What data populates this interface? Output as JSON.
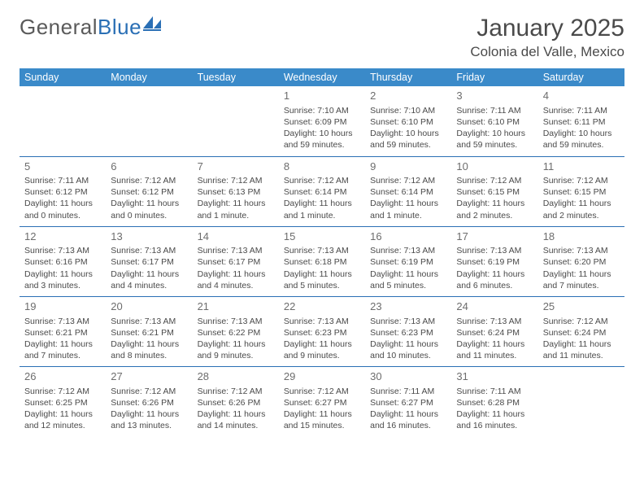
{
  "logo": {
    "text_gray": "General",
    "text_blue": "Blue",
    "icon_color": "#2a6fb5"
  },
  "header": {
    "title": "January 2025",
    "location": "Colonia del Valle, Mexico"
  },
  "colors": {
    "header_bar": "#3a8ac9",
    "row_divider": "#2a6fb5",
    "text_body": "#4a4a4a",
    "daynum": "#6d6d6d",
    "background": "#ffffff"
  },
  "typography": {
    "title_fontsize": 30,
    "location_fontsize": 17,
    "dayheader_fontsize": 12.5,
    "cell_fontsize": 10.5,
    "daynum_fontsize": 13
  },
  "day_headers": [
    "Sunday",
    "Monday",
    "Tuesday",
    "Wednesday",
    "Thursday",
    "Friday",
    "Saturday"
  ],
  "weeks": [
    [
      null,
      null,
      null,
      {
        "n": "1",
        "sunrise": "7:10 AM",
        "sunset": "6:09 PM",
        "daylight": "10 hours and 59 minutes."
      },
      {
        "n": "2",
        "sunrise": "7:10 AM",
        "sunset": "6:10 PM",
        "daylight": "10 hours and 59 minutes."
      },
      {
        "n": "3",
        "sunrise": "7:11 AM",
        "sunset": "6:10 PM",
        "daylight": "10 hours and 59 minutes."
      },
      {
        "n": "4",
        "sunrise": "7:11 AM",
        "sunset": "6:11 PM",
        "daylight": "10 hours and 59 minutes."
      }
    ],
    [
      {
        "n": "5",
        "sunrise": "7:11 AM",
        "sunset": "6:12 PM",
        "daylight": "11 hours and 0 minutes."
      },
      {
        "n": "6",
        "sunrise": "7:12 AM",
        "sunset": "6:12 PM",
        "daylight": "11 hours and 0 minutes."
      },
      {
        "n": "7",
        "sunrise": "7:12 AM",
        "sunset": "6:13 PM",
        "daylight": "11 hours and 1 minute."
      },
      {
        "n": "8",
        "sunrise": "7:12 AM",
        "sunset": "6:14 PM",
        "daylight": "11 hours and 1 minute."
      },
      {
        "n": "9",
        "sunrise": "7:12 AM",
        "sunset": "6:14 PM",
        "daylight": "11 hours and 1 minute."
      },
      {
        "n": "10",
        "sunrise": "7:12 AM",
        "sunset": "6:15 PM",
        "daylight": "11 hours and 2 minutes."
      },
      {
        "n": "11",
        "sunrise": "7:12 AM",
        "sunset": "6:15 PM",
        "daylight": "11 hours and 2 minutes."
      }
    ],
    [
      {
        "n": "12",
        "sunrise": "7:13 AM",
        "sunset": "6:16 PM",
        "daylight": "11 hours and 3 minutes."
      },
      {
        "n": "13",
        "sunrise": "7:13 AM",
        "sunset": "6:17 PM",
        "daylight": "11 hours and 4 minutes."
      },
      {
        "n": "14",
        "sunrise": "7:13 AM",
        "sunset": "6:17 PM",
        "daylight": "11 hours and 4 minutes."
      },
      {
        "n": "15",
        "sunrise": "7:13 AM",
        "sunset": "6:18 PM",
        "daylight": "11 hours and 5 minutes."
      },
      {
        "n": "16",
        "sunrise": "7:13 AM",
        "sunset": "6:19 PM",
        "daylight": "11 hours and 5 minutes."
      },
      {
        "n": "17",
        "sunrise": "7:13 AM",
        "sunset": "6:19 PM",
        "daylight": "11 hours and 6 minutes."
      },
      {
        "n": "18",
        "sunrise": "7:13 AM",
        "sunset": "6:20 PM",
        "daylight": "11 hours and 7 minutes."
      }
    ],
    [
      {
        "n": "19",
        "sunrise": "7:13 AM",
        "sunset": "6:21 PM",
        "daylight": "11 hours and 7 minutes."
      },
      {
        "n": "20",
        "sunrise": "7:13 AM",
        "sunset": "6:21 PM",
        "daylight": "11 hours and 8 minutes."
      },
      {
        "n": "21",
        "sunrise": "7:13 AM",
        "sunset": "6:22 PM",
        "daylight": "11 hours and 9 minutes."
      },
      {
        "n": "22",
        "sunrise": "7:13 AM",
        "sunset": "6:23 PM",
        "daylight": "11 hours and 9 minutes."
      },
      {
        "n": "23",
        "sunrise": "7:13 AM",
        "sunset": "6:23 PM",
        "daylight": "11 hours and 10 minutes."
      },
      {
        "n": "24",
        "sunrise": "7:13 AM",
        "sunset": "6:24 PM",
        "daylight": "11 hours and 11 minutes."
      },
      {
        "n": "25",
        "sunrise": "7:12 AM",
        "sunset": "6:24 PM",
        "daylight": "11 hours and 11 minutes."
      }
    ],
    [
      {
        "n": "26",
        "sunrise": "7:12 AM",
        "sunset": "6:25 PM",
        "daylight": "11 hours and 12 minutes."
      },
      {
        "n": "27",
        "sunrise": "7:12 AM",
        "sunset": "6:26 PM",
        "daylight": "11 hours and 13 minutes."
      },
      {
        "n": "28",
        "sunrise": "7:12 AM",
        "sunset": "6:26 PM",
        "daylight": "11 hours and 14 minutes."
      },
      {
        "n": "29",
        "sunrise": "7:12 AM",
        "sunset": "6:27 PM",
        "daylight": "11 hours and 15 minutes."
      },
      {
        "n": "30",
        "sunrise": "7:11 AM",
        "sunset": "6:27 PM",
        "daylight": "11 hours and 16 minutes."
      },
      {
        "n": "31",
        "sunrise": "7:11 AM",
        "sunset": "6:28 PM",
        "daylight": "11 hours and 16 minutes."
      },
      null
    ]
  ],
  "labels": {
    "sunrise": "Sunrise:",
    "sunset": "Sunset:",
    "daylight": "Daylight:"
  }
}
